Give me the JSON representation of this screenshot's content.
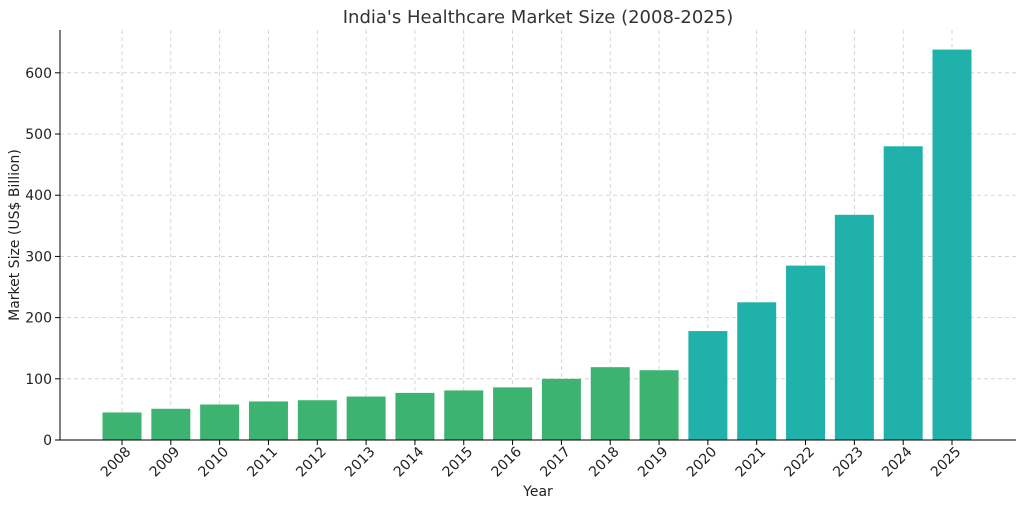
{
  "chart_data": {
    "type": "bar",
    "title": "India's Healthcare Market Size (2008-2025)",
    "xlabel": "Year",
    "ylabel": "Market Size (US$ Billion)",
    "ylim": [
      0,
      670
    ],
    "yticks": [
      0,
      100,
      200,
      300,
      400,
      500,
      600
    ],
    "grid": true,
    "categories": [
      "2008",
      "2009",
      "2010",
      "2011",
      "2012",
      "2013",
      "2014",
      "2015",
      "2016",
      "2017",
      "2018",
      "2019",
      "2020",
      "2021",
      "2022",
      "2023",
      "2024",
      "2025"
    ],
    "values": [
      45,
      51,
      58,
      63,
      65,
      71,
      77,
      81,
      86,
      100,
      119,
      114,
      178,
      225,
      285,
      368,
      480,
      638
    ],
    "colors": {
      "2008-2019": "#3cb371",
      "2020-2025": "#20b2aa"
    },
    "bar_colors": [
      "#3cb371",
      "#3cb371",
      "#3cb371",
      "#3cb371",
      "#3cb371",
      "#3cb371",
      "#3cb371",
      "#3cb371",
      "#3cb371",
      "#3cb371",
      "#3cb371",
      "#3cb371",
      "#20b2aa",
      "#20b2aa",
      "#20b2aa",
      "#20b2aa",
      "#20b2aa",
      "#20b2aa"
    ]
  }
}
